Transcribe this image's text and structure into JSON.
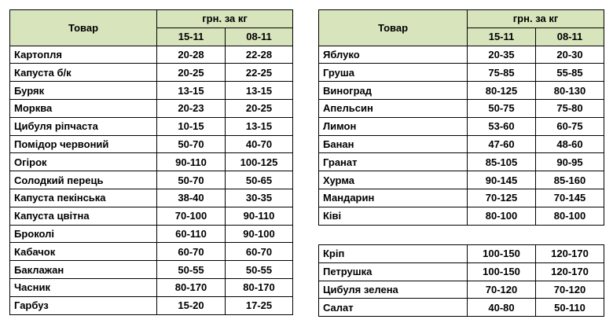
{
  "headers": {
    "product": "Товар",
    "unit": "грн. за кг",
    "date1": "15-11",
    "date2": "08-11"
  },
  "vegetables": [
    {
      "name": "Картопля",
      "d1": "20-28",
      "d2": "22-28"
    },
    {
      "name": "Капуста б/к",
      "d1": "20-25",
      "d2": "22-25"
    },
    {
      "name": "Буряк",
      "d1": "13-15",
      "d2": "13-15"
    },
    {
      "name": "Морква",
      "d1": "20-23",
      "d2": "20-25"
    },
    {
      "name": "Цибуля ріпчаста",
      "d1": "10-15",
      "d2": "13-15"
    },
    {
      "name": "Помідор червоний",
      "d1": "50-70",
      "d2": "40-70"
    },
    {
      "name": "Огірок",
      "d1": "90-110",
      "d2": "100-125"
    },
    {
      "name": "Солодкий перець",
      "d1": "50-70",
      "d2": "50-65"
    },
    {
      "name": "Капуста пекінська",
      "d1": "38-40",
      "d2": "30-35"
    },
    {
      "name": "Капуста цвітна",
      "d1": "70-100",
      "d2": "90-110"
    },
    {
      "name": "Броколі",
      "d1": "60-110",
      "d2": "90-100"
    },
    {
      "name": "Кабачок",
      "d1": "60-70",
      "d2": "60-70"
    },
    {
      "name": "Баклажан",
      "d1": "50-55",
      "d2": "50-55"
    },
    {
      "name": "Часник",
      "d1": "80-170",
      "d2": "80-170"
    },
    {
      "name": "Гарбуз",
      "d1": "15-20",
      "d2": "17-25"
    }
  ],
  "fruits": [
    {
      "name": "Яблуко",
      "d1": "20-35",
      "d2": "20-30"
    },
    {
      "name": "Груша",
      "d1": "75-85",
      "d2": "55-85"
    },
    {
      "name": "Виноград",
      "d1": "80-125",
      "d2": "80-130"
    },
    {
      "name": "Апельсин",
      "d1": "50-75",
      "d2": "75-80"
    },
    {
      "name": "Лимон",
      "d1": "53-60",
      "d2": "60-75"
    },
    {
      "name": "Банан",
      "d1": "47-60",
      "d2": "48-60"
    },
    {
      "name": "Гранат",
      "d1": "85-105",
      "d2": "90-95"
    },
    {
      "name": "Хурма",
      "d1": "90-145",
      "d2": "85-160"
    },
    {
      "name": "Мандарин",
      "d1": "70-125",
      "d2": "70-145"
    },
    {
      "name": "Ківі",
      "d1": "80-100",
      "d2": "80-100"
    }
  ],
  "greens": [
    {
      "name": "Кріп",
      "d1": "100-150",
      "d2": "120-170"
    },
    {
      "name": "Петрушка",
      "d1": "100-150",
      "d2": "120-170"
    },
    {
      "name": "Цибуля зелена",
      "d1": "70-120",
      "d2": "70-120"
    },
    {
      "name": "Салат",
      "d1": "40-80",
      "d2": "50-110"
    }
  ],
  "colors": {
    "header_bg": "#d8e4bc",
    "border": "#000000"
  }
}
